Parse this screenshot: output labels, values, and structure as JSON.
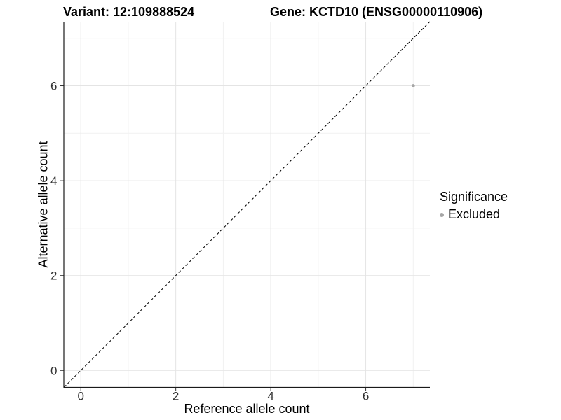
{
  "header": {
    "variant_title": "Variant: 12:109888524",
    "gene_title": "Gene: KCTD10 (ENSG00000110906)"
  },
  "chart_data": {
    "type": "scatter",
    "title_left": "Variant: 12:109888524",
    "title_right": "Gene: KCTD10 (ENSG00000110906)",
    "xlabel": "Reference allele count",
    "ylabel": "Alternative allele count",
    "xlim": [
      -0.35,
      7.35
    ],
    "ylim": [
      -0.35,
      7.35
    ],
    "x_ticks": [
      0,
      2,
      4,
      6
    ],
    "y_ticks": [
      0,
      2,
      4,
      6
    ],
    "x_minor_gridlines": [
      1,
      3,
      5,
      7
    ],
    "y_minor_gridlines": [
      1,
      3,
      5,
      7
    ],
    "grid": "major and minor gridlines on white panel",
    "identity_line": {
      "style": "dashed",
      "x1": -0.35,
      "y1": -0.35,
      "x2": 7.35,
      "y2": 7.35
    },
    "series": [
      {
        "name": "Excluded",
        "color": "#a6a6a6",
        "points": [
          {
            "x": 7,
            "y": 6
          }
        ]
      }
    ],
    "legend": {
      "title": "Significance",
      "position": "right",
      "entries": [
        {
          "label": "Excluded",
          "color": "#a6a6a6"
        }
      ]
    }
  },
  "colors": {
    "background": "#ffffff",
    "grid_major": "#e4e4e4",
    "grid_minor": "#f1f1f1",
    "axis_line": "#1a1a1a",
    "tick_mark": "#333333",
    "tick_label": "#303030",
    "title_text": "#000000",
    "point": "#a6a6a6",
    "identity_line": "#000000"
  }
}
